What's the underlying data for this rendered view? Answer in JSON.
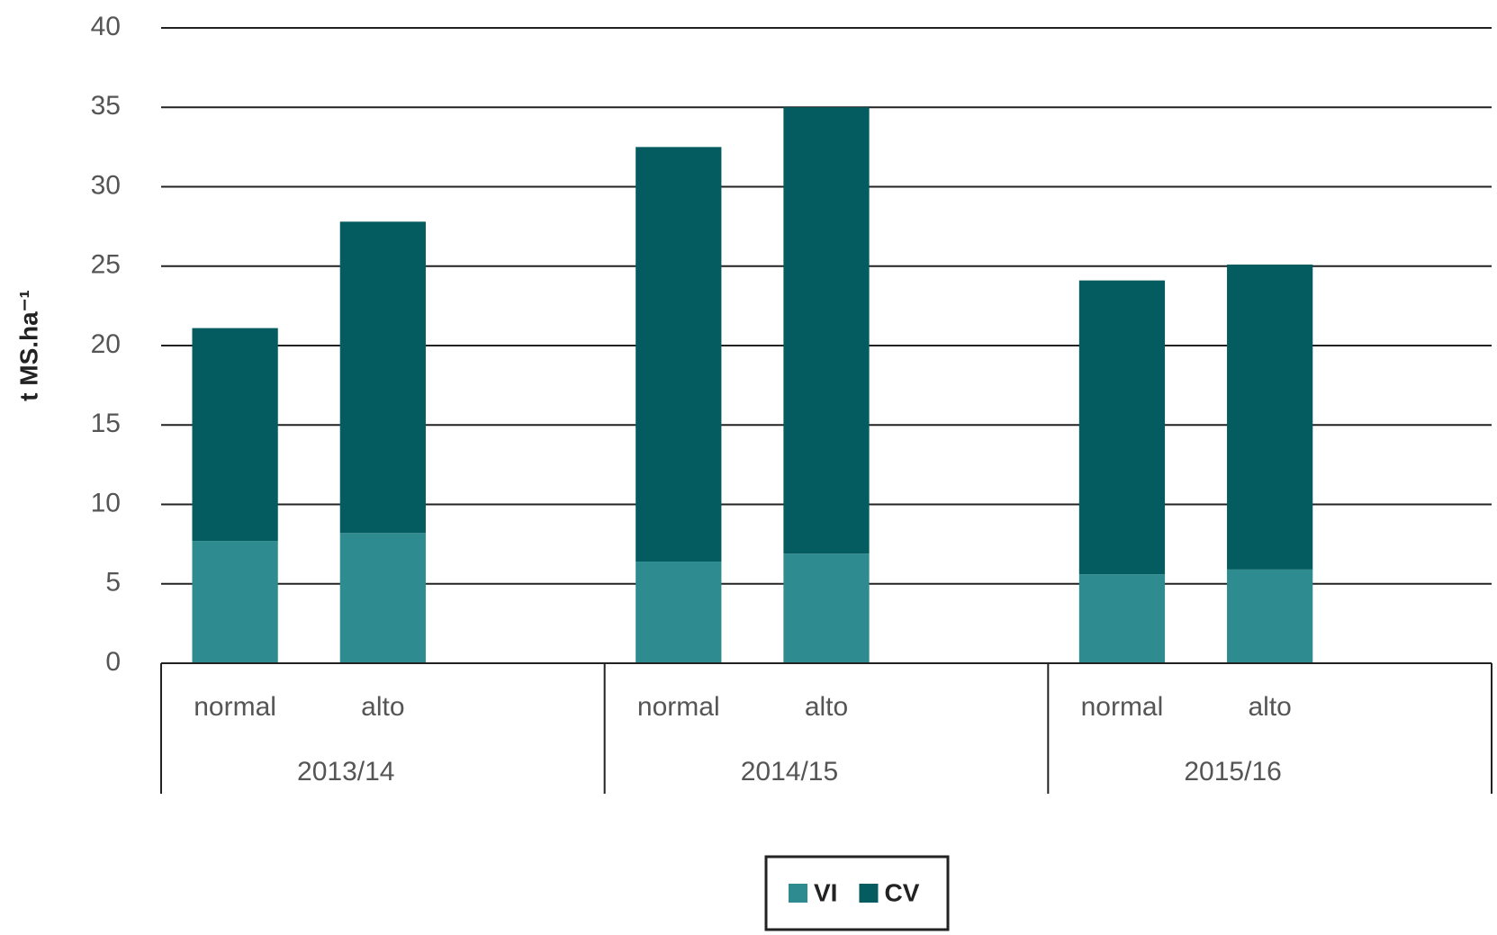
{
  "chart_data": {
    "type": "stacked_bar",
    "y_label": "t MS.ha⁻¹",
    "groups": [
      "2013/14",
      "2014/15",
      "2015/16"
    ],
    "categories": [
      "normal",
      "alto",
      "normal",
      "alto",
      "normal",
      "alto"
    ],
    "series": [
      {
        "name": "VI",
        "color": "#2e8b8f",
        "values": [
          7.7,
          8.2,
          6.4,
          6.9,
          5.6,
          5.9
        ]
      },
      {
        "name": "CV",
        "color": "#045c60",
        "values": [
          13.4,
          19.6,
          26.1,
          28.1,
          18.5,
          19.2
        ]
      }
    ],
    "ylim": [
      0,
      40
    ],
    "yticks": [
      0,
      5,
      10,
      15,
      20,
      25,
      30,
      35,
      40
    ],
    "grid": true,
    "legend": "bottom"
  }
}
